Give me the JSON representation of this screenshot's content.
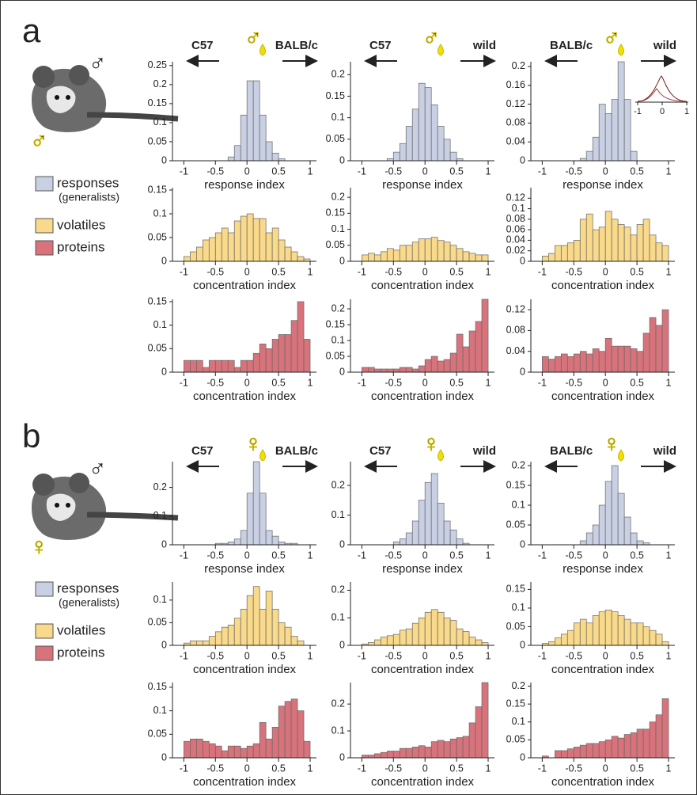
{
  "figure": {
    "panels": [
      {
        "label": "a",
        "sex_symbol": "♂",
        "stim_symbol": "♂",
        "headers": [
          {
            "left": "C57",
            "symbol": "♂",
            "right": "BALB/c"
          },
          {
            "left": "C57",
            "symbol": "♂",
            "right": "wild"
          },
          {
            "left": "BALB/c",
            "symbol": "♂",
            "right": "wild"
          }
        ],
        "legend": {
          "responses": "responses",
          "responses_note": "(generalists)",
          "volatiles": "volatiles",
          "proteins": "proteins"
        }
      },
      {
        "label": "b",
        "sex_symbol": "♂",
        "stim_symbol": "♀",
        "headers": [
          {
            "left": "C57",
            "symbol": "♀",
            "right": "BALB/c"
          },
          {
            "left": "C57",
            "symbol": "♀",
            "right": "wild"
          },
          {
            "left": "BALB/c",
            "symbol": "♀",
            "right": "wild"
          }
        ],
        "legend": {
          "responses": "responses",
          "responses_note": "(generalists)",
          "volatiles": "volatiles",
          "proteins": "proteins"
        }
      }
    ],
    "inset": {
      "xlim": [
        -1,
        1
      ],
      "xticks": [
        -1,
        0,
        1
      ]
    }
  },
  "chart_data": [
    {
      "type": "histogram",
      "x_label": "response index",
      "color": "#c9d0e4",
      "bins": [
        -1,
        -0.9,
        -0.8,
        -0.7,
        -0.6,
        -0.5,
        -0.4,
        -0.3,
        -0.2,
        -0.1,
        0,
        0.1,
        0.2,
        0.3,
        0.4,
        0.5,
        0.6,
        0.7,
        0.8,
        0.9,
        1
      ],
      "values": [
        0,
        0,
        0,
        0,
        0,
        0,
        0,
        0.01,
        0.04,
        0.12,
        0.21,
        0.21,
        0.12,
        0.05,
        0.02,
        0.005,
        0,
        0,
        0,
        0
      ],
      "xlim": [
        -1.18,
        1.1
      ],
      "ylim": [
        0,
        0.26
      ],
      "xticks": [
        -1,
        -0.5,
        0,
        0.5,
        1
      ],
      "yticks": [
        0,
        0.05,
        0.1,
        0.15,
        0.2,
        0.25
      ]
    },
    {
      "type": "histogram",
      "x_label": "response index",
      "color": "#c9d0e4",
      "bins": [
        -1,
        -0.9,
        -0.8,
        -0.7,
        -0.6,
        -0.5,
        -0.4,
        -0.3,
        -0.2,
        -0.1,
        0,
        0.1,
        0.2,
        0.3,
        0.4,
        0.5,
        0.6,
        0.7,
        0.8,
        0.9,
        1
      ],
      "values": [
        0,
        0,
        0,
        0,
        0.005,
        0.02,
        0.04,
        0.08,
        0.12,
        0.18,
        0.17,
        0.13,
        0.08,
        0.05,
        0.02,
        0.005,
        0,
        0,
        0,
        0
      ],
      "xlim": [
        -1.18,
        1.1
      ],
      "ylim": [
        0,
        0.23
      ],
      "xticks": [
        -1,
        -0.5,
        0,
        0.5,
        1
      ],
      "yticks": [
        0,
        0.05,
        0.1,
        0.15,
        0.2
      ]
    },
    {
      "type": "histogram",
      "x_label": "response index",
      "color": "#c9d0e4",
      "bins": [
        -1,
        -0.9,
        -0.8,
        -0.7,
        -0.6,
        -0.5,
        -0.4,
        -0.3,
        -0.2,
        -0.1,
        0,
        0.1,
        0.2,
        0.3,
        0.4,
        0.5,
        0.6,
        0.7,
        0.8,
        0.9,
        1
      ],
      "values": [
        0,
        0,
        0,
        0,
        0,
        0,
        0.005,
        0.02,
        0.05,
        0.12,
        0.1,
        0.13,
        0.21,
        0.13,
        0.02,
        0,
        0,
        0,
        0,
        0
      ],
      "xlim": [
        -1.18,
        1.1
      ],
      "ylim": [
        0,
        0.21
      ],
      "xticks": [
        -1,
        -0.5,
        0,
        0.5,
        1
      ],
      "yticks": [
        0,
        0.04,
        0.08,
        0.12,
        0.16,
        0.2
      ]
    },
    {
      "type": "histogram",
      "x_label": "concentration index",
      "color": "#f9d98a",
      "bins": [
        -1,
        -0.9,
        -0.8,
        -0.7,
        -0.6,
        -0.5,
        -0.4,
        -0.3,
        -0.2,
        -0.1,
        0,
        0.1,
        0.2,
        0.3,
        0.4,
        0.5,
        0.6,
        0.7,
        0.8,
        0.9,
        1
      ],
      "values": [
        0.01,
        0.02,
        0.03,
        0.045,
        0.05,
        0.06,
        0.07,
        0.06,
        0.085,
        0.095,
        0.1,
        0.09,
        0.09,
        0.06,
        0.07,
        0.045,
        0.03,
        0.02,
        0.01,
        0.005
      ],
      "xlim": [
        -1.18,
        1.1
      ],
      "ylim": [
        0,
        0.155
      ],
      "xticks": [
        -1,
        -0.5,
        0,
        0.5,
        1
      ],
      "yticks": [
        0,
        0.05,
        0.1,
        0.15
      ]
    },
    {
      "type": "histogram",
      "x_label": "concentration index",
      "color": "#f9d98a",
      "bins": [
        -1,
        -0.9,
        -0.8,
        -0.7,
        -0.6,
        -0.5,
        -0.4,
        -0.3,
        -0.2,
        -0.1,
        0,
        0.1,
        0.2,
        0.3,
        0.4,
        0.5,
        0.6,
        0.7,
        0.8,
        0.9,
        1
      ],
      "values": [
        0.02,
        0.025,
        0.02,
        0.03,
        0.04,
        0.035,
        0.05,
        0.05,
        0.06,
        0.07,
        0.07,
        0.075,
        0.065,
        0.06,
        0.05,
        0.04,
        0.03,
        0.025,
        0.02,
        0.02
      ],
      "xlim": [
        -1.18,
        1.1
      ],
      "ylim": [
        0,
        0.23
      ],
      "xticks": [
        -1,
        -0.5,
        0,
        0.5,
        1
      ],
      "yticks": [
        0,
        0.05,
        0.1,
        0.15,
        0.2
      ]
    },
    {
      "type": "histogram",
      "x_label": "concentration index",
      "color": "#f9d98a",
      "bins": [
        -1,
        -0.9,
        -0.8,
        -0.7,
        -0.6,
        -0.5,
        -0.4,
        -0.3,
        -0.2,
        -0.1,
        0,
        0.1,
        0.2,
        0.3,
        0.4,
        0.5,
        0.6,
        0.7,
        0.8,
        0.9,
        1
      ],
      "values": [
        0.01,
        0.015,
        0.03,
        0.03,
        0.035,
        0.04,
        0.08,
        0.09,
        0.06,
        0.065,
        0.095,
        0.08,
        0.07,
        0.065,
        0.05,
        0.07,
        0.08,
        0.05,
        0.035,
        0.03
      ],
      "xlim": [
        -1.18,
        1.1
      ],
      "ylim": [
        0,
        0.14
      ],
      "xticks": [
        -1,
        -0.5,
        0,
        0.5,
        1
      ],
      "yticks": [
        0,
        0.02,
        0.04,
        0.06,
        0.08,
        0.1,
        0.12
      ]
    },
    {
      "type": "histogram",
      "x_label": "concentration index",
      "color": "#d9737b",
      "bins": [
        -1,
        -0.9,
        -0.8,
        -0.7,
        -0.6,
        -0.5,
        -0.4,
        -0.3,
        -0.2,
        -0.1,
        0,
        0.1,
        0.2,
        0.3,
        0.4,
        0.5,
        0.6,
        0.7,
        0.8,
        0.9,
        1
      ],
      "values": [
        0.025,
        0.025,
        0.025,
        0.01,
        0.025,
        0.025,
        0.025,
        0.025,
        0.01,
        0.025,
        0.025,
        0.04,
        0.06,
        0.05,
        0.07,
        0.08,
        0.08,
        0.11,
        0.15,
        0.07
      ],
      "xlim": [
        -1.18,
        1.1
      ],
      "ylim": [
        0,
        0.155
      ],
      "xticks": [
        -1,
        -0.5,
        0,
        0.5,
        1
      ],
      "yticks": [
        0,
        0.05,
        0.1,
        0.15
      ]
    },
    {
      "type": "histogram",
      "x_label": "concentration index",
      "color": "#d9737b",
      "bins": [
        -1,
        -0.9,
        -0.8,
        -0.7,
        -0.6,
        -0.5,
        -0.4,
        -0.3,
        -0.2,
        -0.1,
        0,
        0.1,
        0.2,
        0.3,
        0.4,
        0.5,
        0.6,
        0.7,
        0.8,
        0.9,
        1
      ],
      "values": [
        0.015,
        0.015,
        0.01,
        0.01,
        0.01,
        0.01,
        0.015,
        0.015,
        0.01,
        0.02,
        0.04,
        0.05,
        0.035,
        0.04,
        0.06,
        0.12,
        0.08,
        0.13,
        0.16,
        0.23
      ],
      "xlim": [
        -1.18,
        1.1
      ],
      "ylim": [
        0,
        0.23
      ],
      "xticks": [
        -1,
        -0.5,
        0,
        0.5,
        1
      ],
      "yticks": [
        0,
        0.05,
        0.1,
        0.15,
        0.2
      ]
    },
    {
      "type": "histogram",
      "x_label": "concentration index",
      "color": "#d9737b",
      "bins": [
        -1,
        -0.9,
        -0.8,
        -0.7,
        -0.6,
        -0.5,
        -0.4,
        -0.3,
        -0.2,
        -0.1,
        0,
        0.1,
        0.2,
        0.3,
        0.4,
        0.5,
        0.6,
        0.7,
        0.8,
        0.9,
        1
      ],
      "values": [
        0.03,
        0.025,
        0.03,
        0.035,
        0.03,
        0.035,
        0.04,
        0.035,
        0.045,
        0.04,
        0.065,
        0.05,
        0.05,
        0.05,
        0.045,
        0.04,
        0.075,
        0.105,
        0.09,
        0.12
      ],
      "xlim": [
        -1.18,
        1.1
      ],
      "ylim": [
        0,
        0.14
      ],
      "xticks": [
        -1,
        -0.5,
        0,
        0.5,
        1
      ],
      "yticks": [
        0,
        0.04,
        0.08,
        0.12
      ]
    },
    {
      "type": "histogram",
      "x_label": "response index",
      "color": "#c9d0e4",
      "bins": [
        -1,
        -0.9,
        -0.8,
        -0.7,
        -0.6,
        -0.5,
        -0.4,
        -0.3,
        -0.2,
        -0.1,
        0,
        0.1,
        0.2,
        0.3,
        0.4,
        0.5,
        0.6,
        0.7,
        0.8,
        0.9,
        1
      ],
      "values": [
        0,
        0,
        0,
        0,
        0,
        0.005,
        0.005,
        0.01,
        0.02,
        0.05,
        0.18,
        0.29,
        0.18,
        0.05,
        0.03,
        0.01,
        0.005,
        0.005,
        0,
        0
      ],
      "xlim": [
        -1.18,
        1.1
      ],
      "ylim": [
        0,
        0.29
      ],
      "xticks": [
        -1,
        -0.5,
        0,
        0.5,
        1
      ],
      "yticks": [
        0,
        0.1,
        0.2
      ]
    },
    {
      "type": "histogram",
      "x_label": "response index",
      "color": "#c9d0e4",
      "bins": [
        -1,
        -0.9,
        -0.8,
        -0.7,
        -0.6,
        -0.5,
        -0.4,
        -0.3,
        -0.2,
        -0.1,
        0,
        0.1,
        0.2,
        0.3,
        0.4,
        0.5,
        0.6,
        0.7,
        0.8,
        0.9,
        1
      ],
      "values": [
        0,
        0,
        0,
        0,
        0,
        0.01,
        0.02,
        0.04,
        0.08,
        0.15,
        0.21,
        0.24,
        0.14,
        0.08,
        0.05,
        0.02,
        0.005,
        0,
        0,
        0
      ],
      "xlim": [
        -1.18,
        1.1
      ],
      "ylim": [
        0,
        0.28
      ],
      "xticks": [
        -1,
        -0.5,
        0,
        0.5,
        1
      ],
      "yticks": [
        0,
        0.1,
        0.2
      ]
    },
    {
      "type": "histogram",
      "x_label": "response index",
      "color": "#c9d0e4",
      "bins": [
        -1,
        -0.9,
        -0.8,
        -0.7,
        -0.6,
        -0.5,
        -0.4,
        -0.3,
        -0.2,
        -0.1,
        0,
        0.1,
        0.2,
        0.3,
        0.4,
        0.5,
        0.6,
        0.7,
        0.8,
        0.9,
        1
      ],
      "values": [
        0,
        0,
        0,
        0,
        0,
        0,
        0.01,
        0.03,
        0.05,
        0.1,
        0.16,
        0.2,
        0.13,
        0.07,
        0.03,
        0.01,
        0.005,
        0,
        0,
        0
      ],
      "xlim": [
        -1.18,
        1.1
      ],
      "ylim": [
        0,
        0.21
      ],
      "xticks": [
        -1,
        -0.5,
        0,
        0.5,
        1
      ],
      "yticks": [
        0,
        0.05,
        0.1,
        0.15,
        0.2
      ]
    },
    {
      "type": "histogram",
      "x_label": "concentration index",
      "color": "#f9d98a",
      "bins": [
        -1,
        -0.9,
        -0.8,
        -0.7,
        -0.6,
        -0.5,
        -0.4,
        -0.3,
        -0.2,
        -0.1,
        0,
        0.1,
        0.2,
        0.3,
        0.4,
        0.5,
        0.6,
        0.7,
        0.8,
        0.9,
        1
      ],
      "values": [
        0.005,
        0.01,
        0.01,
        0.01,
        0.02,
        0.03,
        0.04,
        0.045,
        0.06,
        0.08,
        0.11,
        0.13,
        0.08,
        0.12,
        0.08,
        0.05,
        0.04,
        0.02,
        0.01,
        0
      ],
      "xlim": [
        -1.18,
        1.1
      ],
      "ylim": [
        0,
        0.14
      ],
      "xticks": [
        -1,
        -0.5,
        0,
        0.5,
        1
      ],
      "yticks": [
        0,
        0.05,
        0.1
      ]
    },
    {
      "type": "histogram",
      "x_label": "concentration index",
      "color": "#f9d98a",
      "bins": [
        -1,
        -0.9,
        -0.8,
        -0.7,
        -0.6,
        -0.5,
        -0.4,
        -0.3,
        -0.2,
        -0.1,
        0,
        0.1,
        0.2,
        0.3,
        0.4,
        0.5,
        0.6,
        0.7,
        0.8,
        0.9,
        1
      ],
      "values": [
        0.005,
        0.01,
        0.02,
        0.03,
        0.035,
        0.04,
        0.055,
        0.06,
        0.08,
        0.1,
        0.12,
        0.13,
        0.12,
        0.1,
        0.09,
        0.06,
        0.05,
        0.03,
        0.02,
        0.01
      ],
      "xlim": [
        -1.18,
        1.1
      ],
      "ylim": [
        0,
        0.23
      ],
      "xticks": [
        -1,
        -0.5,
        0,
        0.5,
        1
      ],
      "yticks": [
        0,
        0.1,
        0.2
      ]
    },
    {
      "type": "histogram",
      "x_label": "concentration index",
      "color": "#f9d98a",
      "bins": [
        -1,
        -0.9,
        -0.8,
        -0.7,
        -0.6,
        -0.5,
        -0.4,
        -0.3,
        -0.2,
        -0.1,
        0,
        0.1,
        0.2,
        0.3,
        0.4,
        0.5,
        0.6,
        0.7,
        0.8,
        0.9,
        1
      ],
      "values": [
        0.005,
        0.01,
        0.02,
        0.03,
        0.04,
        0.06,
        0.07,
        0.06,
        0.08,
        0.09,
        0.095,
        0.09,
        0.08,
        0.07,
        0.06,
        0.06,
        0.05,
        0.04,
        0.03,
        0.01
      ],
      "xlim": [
        -1.18,
        1.1
      ],
      "ylim": [
        0,
        0.17
      ],
      "xticks": [
        -1,
        -0.5,
        0,
        0.5,
        1
      ],
      "yticks": [
        0,
        0.05,
        0.1,
        0.15
      ]
    },
    {
      "type": "histogram",
      "x_label": "concentration index",
      "color": "#d9737b",
      "bins": [
        -1,
        -0.9,
        -0.8,
        -0.7,
        -0.6,
        -0.5,
        -0.4,
        -0.3,
        -0.2,
        -0.1,
        0,
        0.1,
        0.2,
        0.3,
        0.4,
        0.5,
        0.6,
        0.7,
        0.8,
        0.9,
        1
      ],
      "values": [
        0.035,
        0.04,
        0.04,
        0.035,
        0.03,
        0.025,
        0.015,
        0.025,
        0.025,
        0.02,
        0.025,
        0.03,
        0.075,
        0.04,
        0.065,
        0.11,
        0.12,
        0.125,
        0.1,
        0.035
      ],
      "xlim": [
        -1.18,
        1.1
      ],
      "ylim": [
        0,
        0.16
      ],
      "xticks": [
        -1,
        -0.5,
        0,
        0.5,
        1
      ],
      "yticks": [
        0,
        0.05,
        0.1,
        0.15
      ]
    },
    {
      "type": "histogram",
      "x_label": "concentration index",
      "color": "#d9737b",
      "bins": [
        -1,
        -0.9,
        -0.8,
        -0.7,
        -0.6,
        -0.5,
        -0.4,
        -0.3,
        -0.2,
        -0.1,
        0,
        0.1,
        0.2,
        0.3,
        0.4,
        0.5,
        0.6,
        0.7,
        0.8,
        0.9,
        1
      ],
      "values": [
        0.01,
        0.01,
        0.015,
        0.02,
        0.025,
        0.025,
        0.035,
        0.035,
        0.04,
        0.045,
        0.04,
        0.06,
        0.065,
        0.06,
        0.07,
        0.075,
        0.08,
        0.13,
        0.19,
        0.28
      ],
      "xlim": [
        -1.18,
        1.1
      ],
      "ylim": [
        0,
        0.28
      ],
      "xticks": [
        -1,
        -0.5,
        0,
        0.5,
        1
      ],
      "yticks": [
        0,
        0.1,
        0.2
      ]
    },
    {
      "type": "histogram",
      "x_label": "concentration index",
      "color": "#d9737b",
      "bins": [
        -1,
        -0.9,
        -0.8,
        -0.7,
        -0.6,
        -0.5,
        -0.4,
        -0.3,
        -0.2,
        -0.1,
        0,
        0.1,
        0.2,
        0.3,
        0.4,
        0.5,
        0.6,
        0.7,
        0.8,
        0.9,
        1
      ],
      "values": [
        0.005,
        0,
        0.02,
        0.02,
        0.025,
        0.03,
        0.035,
        0.04,
        0.04,
        0.045,
        0.05,
        0.06,
        0.055,
        0.065,
        0.07,
        0.08,
        0.08,
        0.1,
        0.12,
        0.165
      ],
      "xlim": [
        -1.18,
        1.1
      ],
      "ylim": [
        0,
        0.21
      ],
      "xticks": [
        -1,
        -0.5,
        0,
        0.5,
        1
      ],
      "yticks": [
        0,
        0.05,
        0.1,
        0.15,
        0.2
      ]
    }
  ]
}
